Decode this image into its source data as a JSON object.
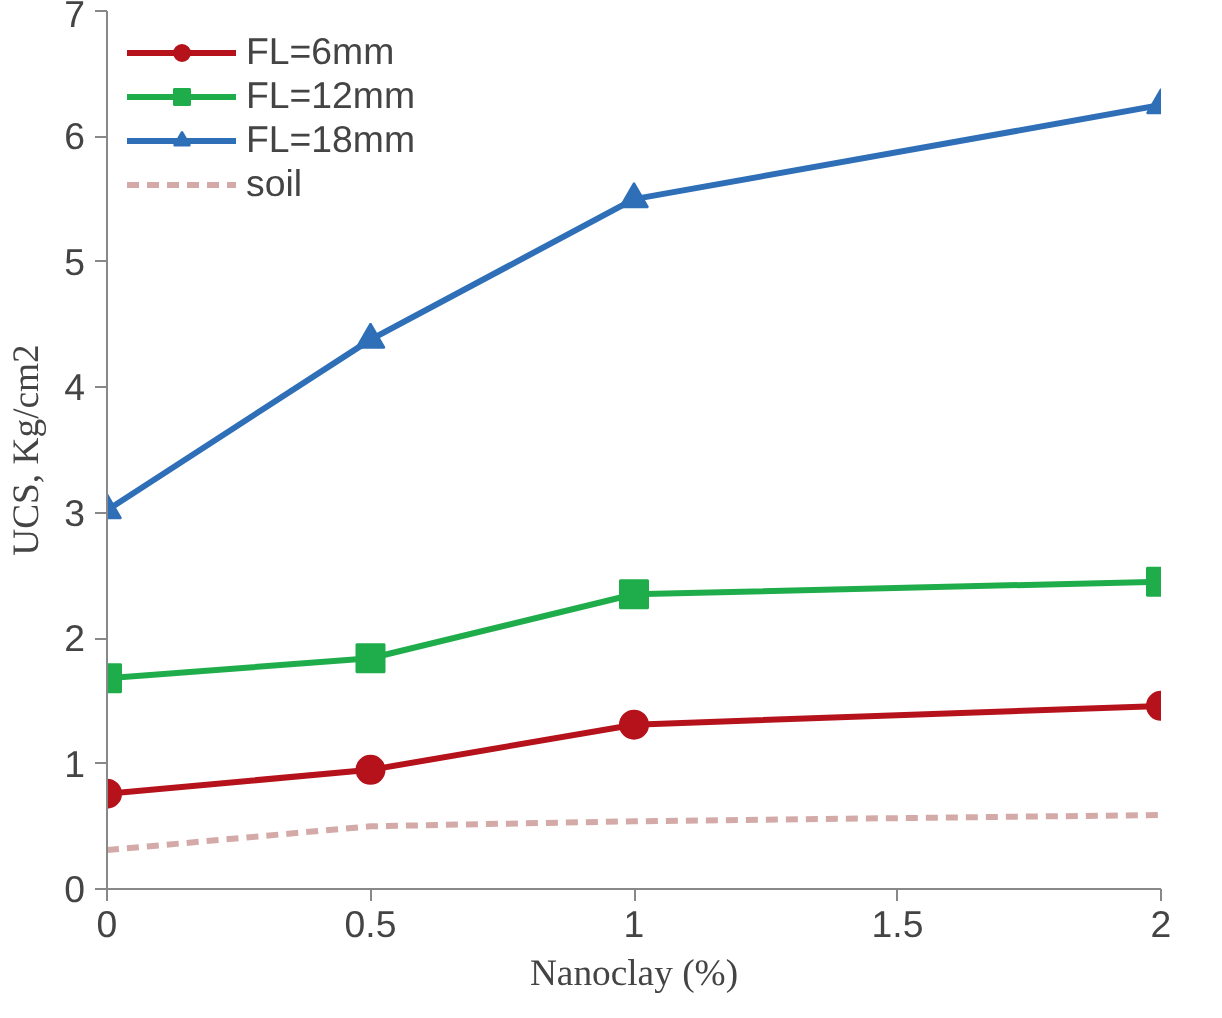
{
  "chart_data": {
    "type": "line",
    "xlabel": "Nanoclay (%)",
    "ylabel": "UCS, Kg/cm2",
    "x": [
      0,
      0.5,
      1,
      2
    ],
    "xlim": [
      0,
      2
    ],
    "xticks": [
      0,
      0.5,
      1,
      1.5,
      2
    ],
    "ylim": [
      0,
      7
    ],
    "yticks": [
      0,
      1,
      2,
      3,
      4,
      5,
      6,
      7
    ],
    "grid": false,
    "legend": "top left",
    "series": [
      {
        "name": "FL=6mm",
        "color": "#b5121b",
        "marker": "circle",
        "line_style": "solid",
        "values": [
          0.76,
          0.95,
          1.31,
          1.46
        ]
      },
      {
        "name": "FL=12mm",
        "color": "#1fad4b",
        "marker": "square",
        "line_style": "solid",
        "values": [
          1.68,
          1.84,
          2.35,
          2.45
        ]
      },
      {
        "name": "FL=18mm",
        "color": "#2e6fb7",
        "marker": "triangle",
        "line_style": "solid",
        "values": [
          3.02,
          4.38,
          5.5,
          6.25
        ]
      },
      {
        "name": "soil",
        "color": "#d4aaa8",
        "marker": "none",
        "line_style": "dashed",
        "values": [
          0.31,
          0.5,
          0.54,
          0.59
        ]
      }
    ]
  }
}
